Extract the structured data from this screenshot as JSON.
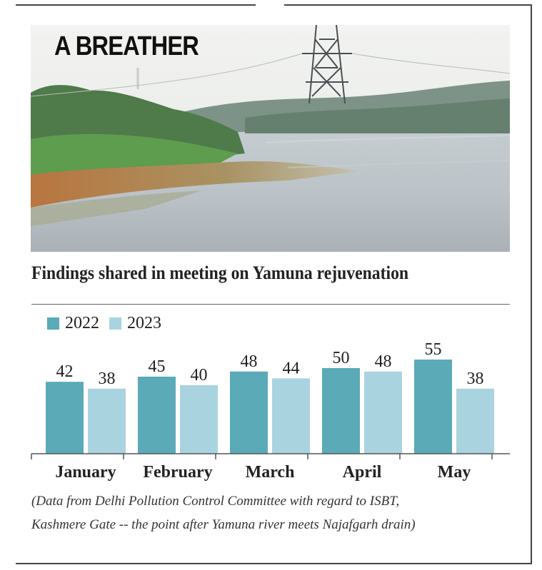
{
  "headline": "A BREATHER",
  "photo": {
    "subject": "yamuna-river-photo"
  },
  "chart_data": {
    "type": "bar",
    "title": "Findings shared in meeting on Yamuna rejuvenation",
    "categories": [
      "January",
      "February",
      "March",
      "April",
      "May"
    ],
    "series": [
      {
        "name": "2022",
        "values": [
          42,
          45,
          48,
          50,
          55
        ],
        "color": "#5aaab7"
      },
      {
        "name": "2023",
        "values": [
          38,
          40,
          44,
          48,
          38
        ],
        "color": "#a9d3df"
      }
    ],
    "xlabel": "",
    "ylabel": "",
    "ylim": [
      0,
      55
    ],
    "grid": false,
    "legend": "top-left"
  },
  "note": {
    "line1": "(Data from Delhi Pollution Control Committee with regard to ISBT,",
    "line2": "Kashmere Gate -- the point after Yamuna river meets Najafgarh drain)"
  }
}
